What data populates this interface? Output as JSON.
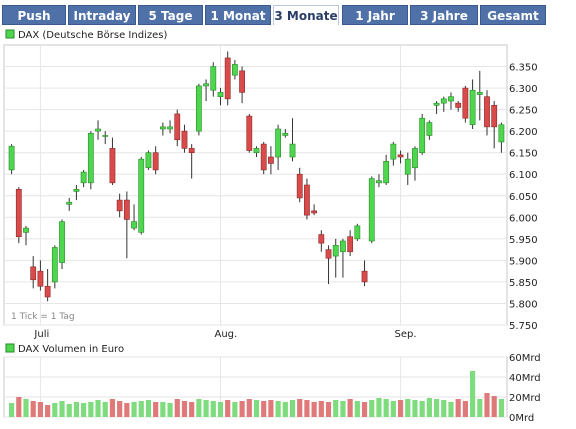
{
  "tabs": [
    {
      "label": "Push",
      "active": false
    },
    {
      "label": "Intraday",
      "active": false
    },
    {
      "label": "5 Tage",
      "active": false
    },
    {
      "label": "1 Monat",
      "active": false
    },
    {
      "label": "3 Monate",
      "active": true
    },
    {
      "label": "1 Jahr",
      "active": false
    },
    {
      "label": "3 Jahre",
      "active": false
    },
    {
      "label": "Gesamt",
      "active": false
    }
  ],
  "colors": {
    "up": "#4fd64f",
    "down": "#d94a4a",
    "vol_up": "#7edc7e",
    "vol_down": "#e07a7a",
    "tab": "#4f71a8"
  },
  "chart_data": [
    {
      "type": "candlestick",
      "legend": "DAX (Deutsche Börse Indizes)",
      "annotation": "1 Tick = 1 Tag",
      "x_labels": [
        "Juli",
        "Aug.",
        "Sep."
      ],
      "x_label_index": [
        4,
        29,
        54
      ],
      "ylim": [
        5750,
        6400
      ],
      "yticks": [
        5750,
        5800,
        5850,
        5900,
        5950,
        6000,
        6050,
        6100,
        6150,
        6200,
        6250,
        6300,
        6350
      ],
      "ytick_labels": [
        "5.750",
        "5.800",
        "5.850",
        "5.900",
        "5.950",
        "6.000",
        "6.050",
        "6.100",
        "6.150",
        "6.200",
        "6.250",
        "6.300",
        "6.350"
      ],
      "grid": true,
      "candles": [
        [
          6110,
          6170,
          6100,
          6165
        ],
        [
          6065,
          6070,
          5940,
          5955
        ],
        [
          5965,
          5980,
          5935,
          5975
        ],
        [
          5885,
          5910,
          5835,
          5855
        ],
        [
          5875,
          5900,
          5830,
          5840
        ],
        [
          5840,
          5880,
          5805,
          5815
        ],
        [
          5850,
          5935,
          5835,
          5930
        ],
        [
          5895,
          5995,
          5880,
          5990
        ],
        [
          6030,
          6045,
          6015,
          6035
        ],
        [
          6060,
          6075,
          6040,
          6065
        ],
        [
          6080,
          6110,
          6070,
          6105
        ],
        [
          6080,
          6200,
          6065,
          6195
        ],
        [
          6200,
          6225,
          6180,
          6205
        ],
        [
          6190,
          6200,
          6170,
          6190
        ],
        [
          6160,
          6185,
          6075,
          6080
        ],
        [
          6040,
          6055,
          6000,
          6015
        ],
        [
          6040,
          6060,
          5905,
          5995
        ],
        [
          5975,
          6030,
          5970,
          5990
        ],
        [
          5965,
          6140,
          5960,
          6135
        ],
        [
          6115,
          6155,
          6110,
          6150
        ],
        [
          6150,
          6165,
          6100,
          6110
        ],
        [
          6205,
          6220,
          6190,
          6210
        ],
        [
          6205,
          6225,
          6195,
          6210
        ],
        [
          6240,
          6250,
          6165,
          6180
        ],
        [
          6200,
          6215,
          6150,
          6160
        ],
        [
          6160,
          6170,
          6090,
          6150
        ],
        [
          6200,
          6310,
          6190,
          6305
        ],
        [
          6305,
          6320,
          6270,
          6310
        ],
        [
          6295,
          6360,
          6280,
          6350
        ],
        [
          6280,
          6300,
          6260,
          6290
        ],
        [
          6370,
          6385,
          6260,
          6275
        ],
        [
          6330,
          6365,
          6320,
          6355
        ],
        [
          6340,
          6350,
          6265,
          6290
        ],
        [
          6235,
          6240,
          6150,
          6155
        ],
        [
          6150,
          6165,
          6140,
          6160
        ],
        [
          6170,
          6175,
          6100,
          6110
        ],
        [
          6140,
          6165,
          6100,
          6125
        ],
        [
          6140,
          6215,
          6110,
          6205
        ],
        [
          6190,
          6205,
          6185,
          6195
        ],
        [
          6140,
          6230,
          6130,
          6170
        ],
        [
          6100,
          6115,
          6035,
          6045
        ],
        [
          6075,
          6090,
          5995,
          6005
        ],
        [
          6015,
          6030,
          6005,
          6010
        ],
        [
          5960,
          5970,
          5920,
          5940
        ],
        [
          5925,
          5935,
          5845,
          5905
        ],
        [
          5910,
          5950,
          5860,
          5935
        ],
        [
          5920,
          5950,
          5860,
          5945
        ],
        [
          5955,
          5970,
          5910,
          5920
        ],
        [
          5950,
          5985,
          5945,
          5980
        ],
        [
          5875,
          5900,
          5840,
          5850
        ],
        [
          5945,
          6095,
          5940,
          6090
        ],
        [
          6080,
          6100,
          6070,
          6085
        ],
        [
          6080,
          6145,
          6075,
          6130
        ],
        [
          6135,
          6175,
          6120,
          6170
        ],
        [
          6145,
          6155,
          6125,
          6140
        ],
        [
          6100,
          6150,
          6075,
          6135
        ],
        [
          6115,
          6165,
          6085,
          6160
        ],
        [
          6150,
          6240,
          6145,
          6230
        ],
        [
          6190,
          6225,
          6180,
          6220
        ],
        [
          6260,
          6270,
          6240,
          6265
        ],
        [
          6265,
          6280,
          6245,
          6275
        ],
        [
          6270,
          6290,
          6250,
          6280
        ],
        [
          6265,
          6270,
          6245,
          6255
        ],
        [
          6300,
          6305,
          6220,
          6230
        ],
        [
          6215,
          6320,
          6205,
          6295
        ],
        [
          6285,
          6340,
          6225,
          6290
        ],
        [
          6280,
          6295,
          6190,
          6210
        ],
        [
          6260,
          6270,
          6160,
          6210
        ],
        [
          6175,
          6220,
          6150,
          6215
        ]
      ]
    },
    {
      "type": "bar",
      "legend": "DAX Volumen in Euro",
      "ylim": [
        0,
        60
      ],
      "yticks": [
        0,
        20,
        40,
        60
      ],
      "ytick_labels": [
        "0Mrd",
        "20Mrd",
        "40Mrd",
        "60Mrd"
      ],
      "values": [
        14,
        20,
        18,
        16,
        15,
        12,
        14,
        16,
        13,
        15,
        14,
        15,
        17,
        15,
        18,
        16,
        14,
        15,
        16,
        17,
        15,
        15,
        14,
        18,
        16,
        15,
        18,
        17,
        16,
        15,
        17,
        15,
        16,
        18,
        17,
        16,
        17,
        16,
        15,
        17,
        18,
        17,
        15,
        16,
        15,
        17,
        16,
        18,
        16,
        15,
        17,
        19,
        18,
        16,
        17,
        18,
        17,
        16,
        19,
        18,
        17,
        15,
        18,
        16,
        46,
        18,
        24,
        21,
        18
      ]
    }
  ]
}
